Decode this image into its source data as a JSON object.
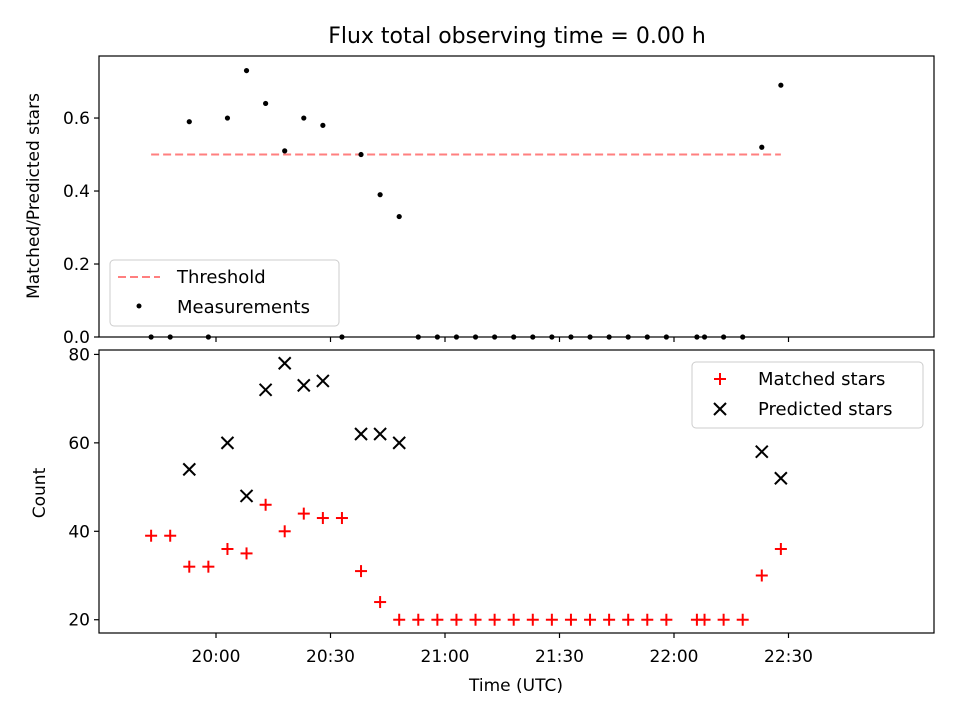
{
  "figure": {
    "title": "Flux total observing time = 0.00 h",
    "xlabel": "Time (UTC)",
    "x_tick_labels": [
      "20:00",
      "20:30",
      "21:00",
      "21:30",
      "22:00",
      "22:30"
    ],
    "x_tick_times": [
      "20:00",
      "20:30",
      "21:00",
      "21:30",
      "22:00",
      "22:30"
    ]
  },
  "chart_data": [
    {
      "type": "scatter",
      "ylabel": "Matched/Predicted stars",
      "ylim": [
        0,
        0.77
      ],
      "y_ticks": [
        0.0,
        0.2,
        0.4,
        0.6
      ],
      "y_tick_labels": [
        "0.0",
        "0.2",
        "0.4",
        "0.6"
      ],
      "legend_position": "lower-left",
      "threshold": {
        "name": "Threshold",
        "value": 0.5,
        "x_range": [
          "19:43",
          "22:28"
        ],
        "color": "#ff7f7f"
      },
      "series": [
        {
          "name": "Measurements",
          "color": "#000000",
          "x": [
            "19:43",
            "19:48",
            "19:53",
            "19:58",
            "20:03",
            "20:08",
            "20:13",
            "20:18",
            "20:23",
            "20:28",
            "20:33",
            "20:38",
            "20:43",
            "20:48",
            "20:53",
            "20:58",
            "21:03",
            "21:08",
            "21:13",
            "21:18",
            "21:23",
            "21:28",
            "21:33",
            "21:38",
            "21:43",
            "21:48",
            "21:53",
            "21:58",
            "22:06",
            "22:08",
            "22:13",
            "22:18",
            "22:23",
            "22:28"
          ],
          "y": [
            0.0,
            0.0,
            0.59,
            0.0,
            0.6,
            0.73,
            0.64,
            0.51,
            0.6,
            0.58,
            0.0,
            0.5,
            0.39,
            0.33,
            0.0,
            0.0,
            0.0,
            0.0,
            0.0,
            0.0,
            0.0,
            0.0,
            0.0,
            0.0,
            0.0,
            0.0,
            0.0,
            0.0,
            0.0,
            0.0,
            0.0,
            0.0,
            0.52,
            0.69
          ]
        }
      ]
    },
    {
      "type": "scatter",
      "ylabel": "Count",
      "ylim": [
        17,
        81
      ],
      "y_ticks": [
        20,
        40,
        60,
        80
      ],
      "y_tick_labels": [
        "20",
        "40",
        "60",
        "80"
      ],
      "legend_position": "upper-right",
      "series": [
        {
          "name": "Matched stars",
          "marker": "plus",
          "color": "#ff0000",
          "x": [
            "19:43",
            "19:48",
            "19:53",
            "19:58",
            "20:03",
            "20:08",
            "20:13",
            "20:18",
            "20:23",
            "20:28",
            "20:33",
            "20:38",
            "20:43",
            "20:48",
            "20:53",
            "20:58",
            "21:03",
            "21:08",
            "21:13",
            "21:18",
            "21:23",
            "21:28",
            "21:33",
            "21:38",
            "21:43",
            "21:48",
            "21:53",
            "21:58",
            "22:06",
            "22:08",
            "22:13",
            "22:18",
            "22:23",
            "22:28"
          ],
          "y": [
            39,
            39,
            32,
            32,
            36,
            35,
            46,
            40,
            44,
            43,
            43,
            31,
            24,
            20,
            20,
            20,
            20,
            20,
            20,
            20,
            20,
            20,
            20,
            20,
            20,
            20,
            20,
            20,
            20,
            20,
            20,
            20,
            30,
            36
          ]
        },
        {
          "name": "Predicted stars",
          "marker": "x",
          "color": "#000000",
          "x": [
            "19:53",
            "20:03",
            "20:08",
            "20:13",
            "20:18",
            "20:23",
            "20:28",
            "20:38",
            "20:43",
            "20:48",
            "22:23",
            "22:28"
          ],
          "y": [
            54,
            60,
            48,
            72,
            78,
            73,
            74,
            62,
            62,
            60,
            58,
            52
          ]
        }
      ]
    }
  ]
}
